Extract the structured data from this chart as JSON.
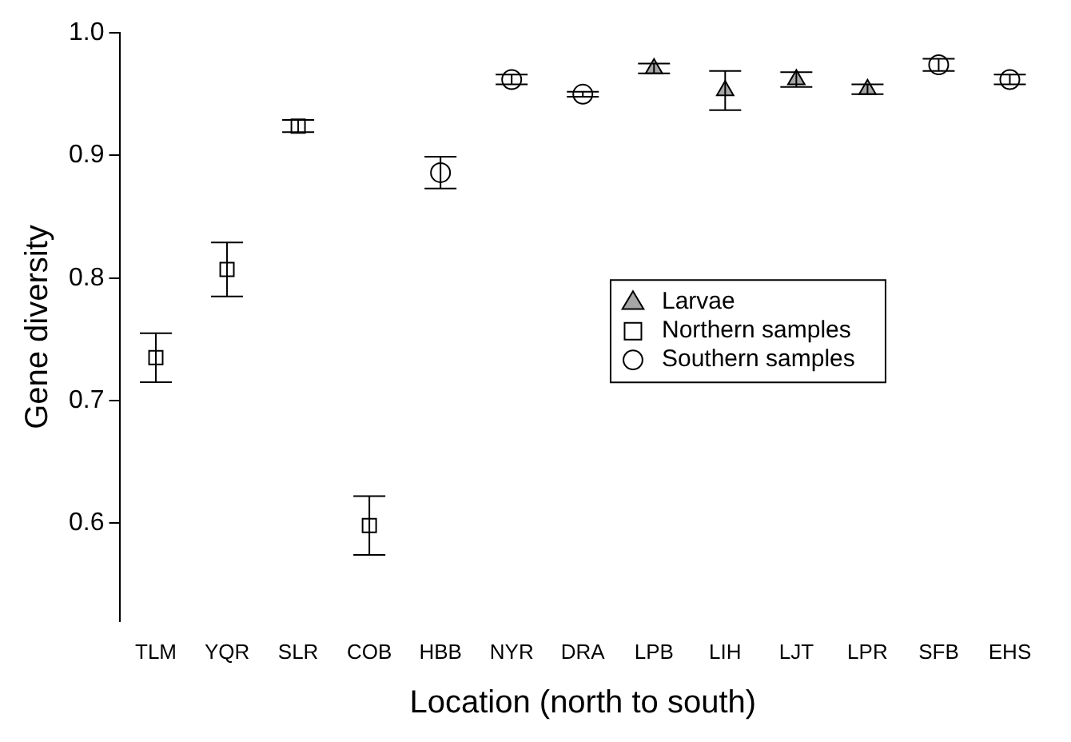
{
  "chart_data": {
    "type": "scatter",
    "xlabel": "Location (north to south)",
    "ylabel": "Gene diversity",
    "categories": [
      "TLM",
      "YQR",
      "SLR",
      "COB",
      "HBB",
      "NYR",
      "DRA",
      "LPB",
      "LIH",
      "LJT",
      "LPR",
      "SFB",
      "EHS"
    ],
    "series": [
      {
        "name": "Larvae",
        "color": "#a6a6a6",
        "marker": "triangle",
        "values": [
          null,
          null,
          null,
          null,
          null,
          null,
          null,
          0.971,
          0.953,
          0.962,
          0.954,
          null,
          null
        ],
        "errors": [
          null,
          null,
          null,
          null,
          null,
          null,
          null,
          0.004,
          0.016,
          0.006,
          0.004,
          null,
          null
        ]
      },
      {
        "name": "Northern samples",
        "color": "#ffffff",
        "marker": "square",
        "values": [
          0.735,
          0.807,
          0.924,
          0.598,
          null,
          null,
          null,
          null,
          null,
          null,
          null,
          null,
          null
        ],
        "errors": [
          0.02,
          0.022,
          0.005,
          0.024,
          null,
          null,
          null,
          null,
          null,
          null,
          null,
          null,
          null
        ]
      },
      {
        "name": "Southern samples",
        "color": "#ffffff",
        "marker": "circle",
        "values": [
          null,
          null,
          null,
          null,
          0.886,
          0.962,
          0.95,
          null,
          null,
          null,
          null,
          0.974,
          0.962
        ],
        "errors": [
          null,
          null,
          null,
          null,
          0.013,
          0.004,
          0.002,
          null,
          null,
          null,
          null,
          0.005,
          0.004
        ]
      }
    ],
    "ylim": [
      0.52,
      1.0
    ],
    "yticks": [
      0.6,
      0.7,
      0.8,
      0.9,
      {
        "value": 1.0,
        "label": "1.0"
      }
    ],
    "grid": false,
    "legend": "right"
  }
}
